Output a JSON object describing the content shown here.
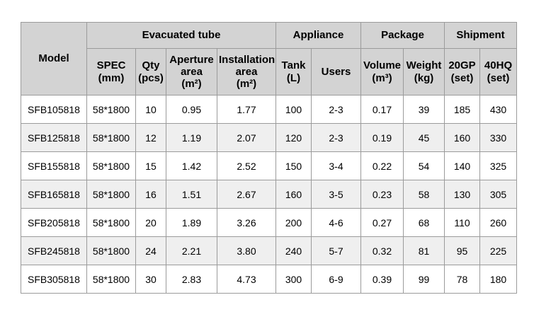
{
  "page": {
    "background": "#ffffff"
  },
  "colors": {
    "header_bg": "#d3d3d3",
    "row_bg": "#ffffff",
    "row_alt_bg": "#efefef",
    "border": "#9b9b9b",
    "text": "#000000"
  },
  "table": {
    "groups": [
      {
        "label": "Model"
      },
      {
        "label": "Evacuated tube"
      },
      {
        "label": "Appliance"
      },
      {
        "label": "Package"
      },
      {
        "label": "Shipment"
      }
    ],
    "sub_headers": [
      "SPEC\n(mm)",
      "Qty\n(pcs)",
      "Aperture area\n(m²)",
      "Installation area\n(m²)",
      "Tank\n(L)",
      "Users",
      "Volume\n(m³)",
      "Weight\n(kg)",
      "20GP\n(set)",
      "40HQ\n(set)"
    ],
    "rows": [
      [
        "SFB105818",
        "58*1800",
        "10",
        "0.95",
        "1.77",
        "100",
        "2-3",
        "0.17",
        "39",
        "185",
        "430"
      ],
      [
        "SFB125818",
        "58*1800",
        "12",
        "1.19",
        "2.07",
        "120",
        "2-3",
        "0.19",
        "45",
        "160",
        "330"
      ],
      [
        "SFB155818",
        "58*1800",
        "15",
        "1.42",
        "2.52",
        "150",
        "3-4",
        "0.22",
        "54",
        "140",
        "325"
      ],
      [
        "SFB165818",
        "58*1800",
        "16",
        "1.51",
        "2.67",
        "160",
        "3-5",
        "0.23",
        "58",
        "130",
        "305"
      ],
      [
        "SFB205818",
        "58*1800",
        "20",
        "1.89",
        "3.26",
        "200",
        "4-6",
        "0.27",
        "68",
        "110",
        "260"
      ],
      [
        "SFB245818",
        "58*1800",
        "24",
        "2.21",
        "3.80",
        "240",
        "5-7",
        "0.32",
        "81",
        "95",
        "225"
      ],
      [
        "SFB305818",
        "58*1800",
        "30",
        "2.83",
        "4.73",
        "300",
        "6-9",
        "0.39",
        "99",
        "78",
        "180"
      ]
    ]
  }
}
